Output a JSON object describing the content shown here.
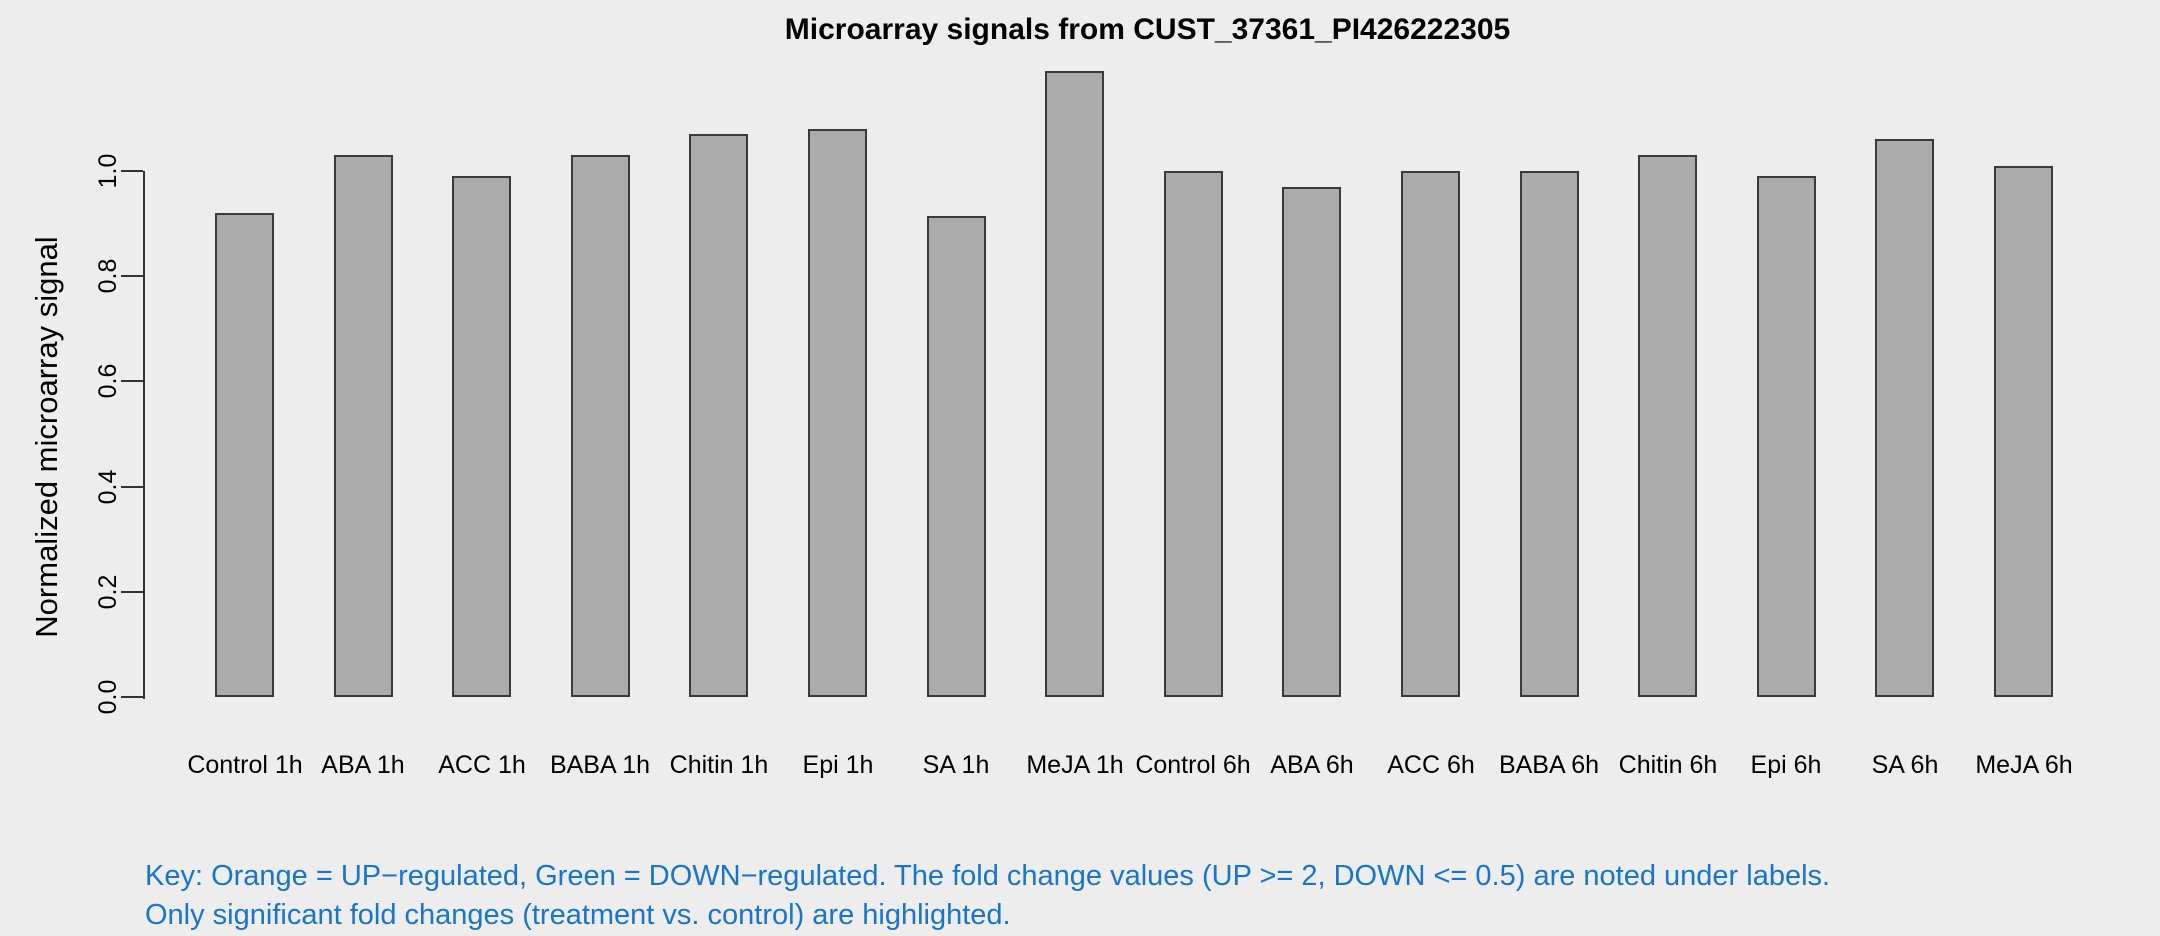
{
  "title": "Microarray signals from CUST_37361_PI426222305",
  "y_axis": {
    "label": "Normalized microarray signal",
    "tick_labels": [
      "0.0",
      "0.2",
      "0.4",
      "0.6",
      "0.8",
      "1.0"
    ]
  },
  "key": {
    "line1": "Key: Orange = UP−regulated, Green = DOWN−regulated. The fold change values (UP >= 2, DOWN <= 0.5) are noted under labels.",
    "line2": "Only significant fold changes (treatment vs. control) are highlighted."
  },
  "colors": {
    "background": "#EDEDED",
    "bar_fill": "#ABABAB",
    "bar_border": "#3A3A3A",
    "axis": "#333333",
    "key_text": "#1874CD",
    "title_text": "#000000"
  },
  "chart_data": {
    "type": "bar",
    "title": "Microarray signals from CUST_37361_PI426222305",
    "xlabel": "",
    "ylabel": "Normalized microarray signal",
    "categories": [
      "Control 1h",
      "ABA 1h",
      "ACC 1h",
      "BABA 1h",
      "Chitin 1h",
      "Epi 1h",
      "SA 1h",
      "MeJA 1h",
      "Control 6h",
      "ABA 6h",
      "ACC 6h",
      "BABA 6h",
      "Chitin 6h",
      "Epi 6h",
      "SA 6h",
      "MeJA 6h"
    ],
    "values": [
      0.92,
      1.03,
      0.99,
      1.03,
      1.07,
      1.08,
      0.915,
      1.19,
      1.0,
      0.97,
      1.0,
      1.0,
      1.03,
      0.99,
      1.06,
      1.01
    ],
    "yticks": [
      0.0,
      0.2,
      0.4,
      0.6,
      0.8,
      1.0
    ],
    "ylim": [
      0,
      1.21
    ],
    "grid": false,
    "legend_position": "none",
    "bar_color": "#ABABAB"
  }
}
